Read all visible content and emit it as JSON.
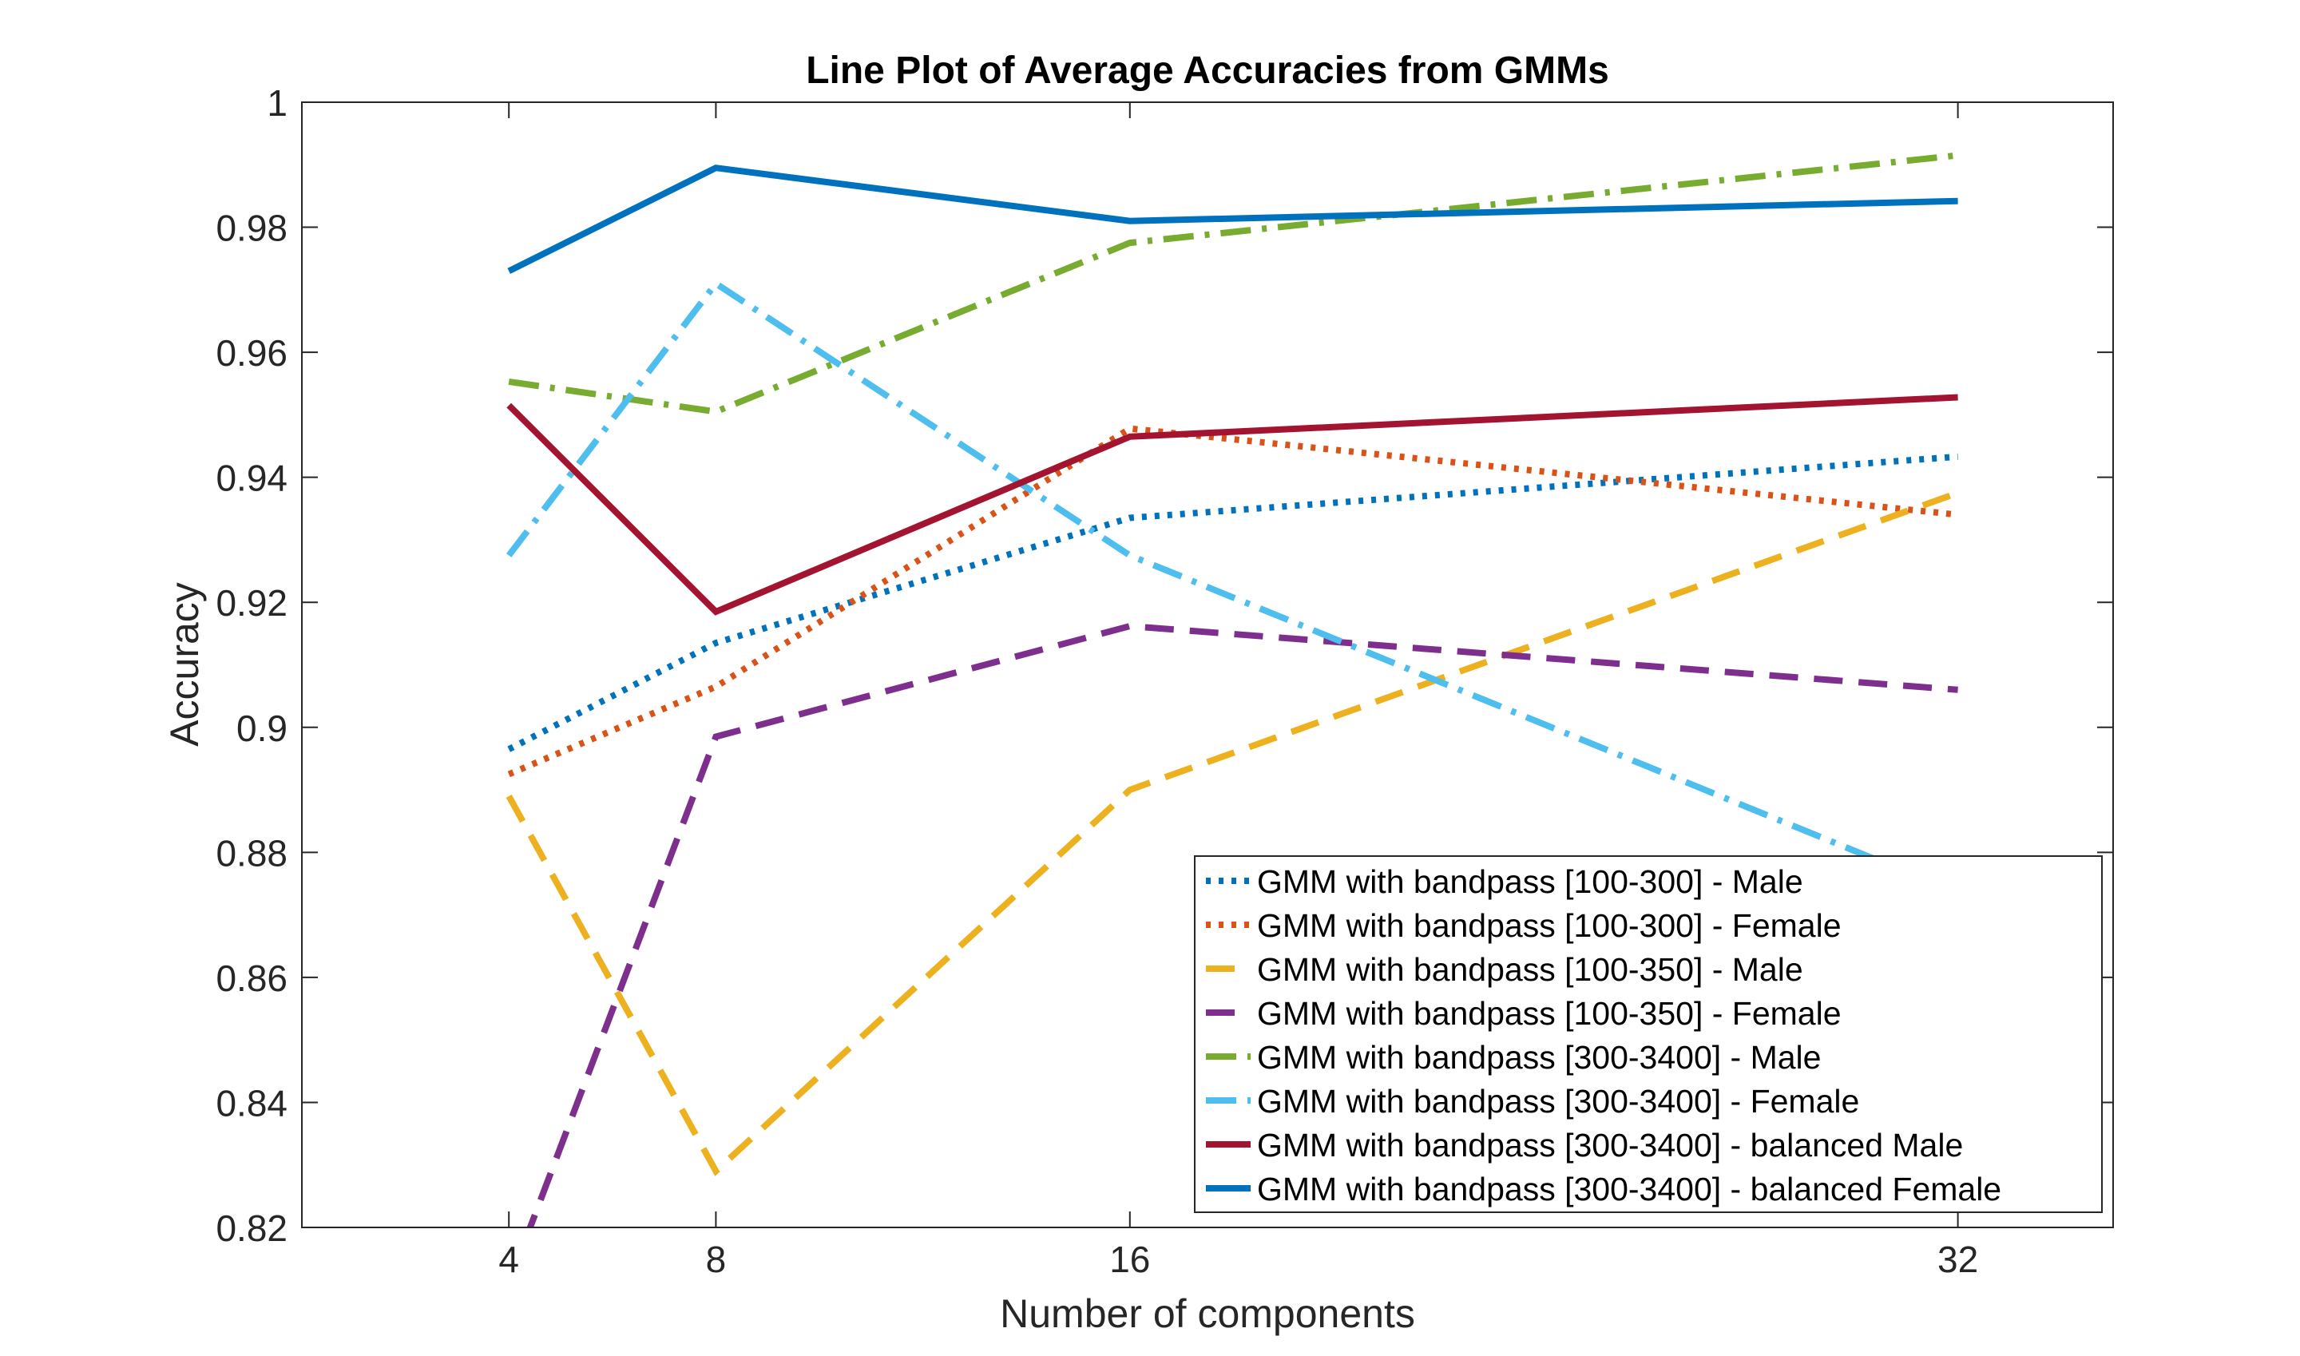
{
  "chart_data": {
    "type": "line",
    "title": "Line Plot of Average Accuracies from GMMs",
    "xlabel": "Number of components",
    "ylabel": "Accuracy",
    "x": [
      4,
      8,
      16,
      32
    ],
    "xticks": [
      4,
      8,
      16,
      32
    ],
    "xtick_labels": [
      "4",
      "8",
      "16",
      "32"
    ],
    "xlim": [
      0,
      35
    ],
    "ylim": [
      0.82,
      1.0
    ],
    "yticks": [
      0.82,
      0.84,
      0.86,
      0.88,
      0.9,
      0.92,
      0.94,
      0.96,
      0.98,
      1.0
    ],
    "ytick_labels": [
      "0.82",
      "0.84",
      "0.86",
      "0.88",
      "0.9",
      "0.92",
      "0.94",
      "0.96",
      "0.98",
      "1"
    ],
    "grid": false,
    "legend_position": "bottom-right",
    "series": [
      {
        "name": "GMM with bandpass [100-300] - Male",
        "values": [
          0.8965,
          0.9135,
          0.9335,
          0.9433
        ],
        "color": "#0072BD",
        "style": "dotted"
      },
      {
        "name": "GMM with bandpass [100-300] - Female",
        "values": [
          0.8925,
          0.9065,
          0.9478,
          0.934
        ],
        "color": "#D95319",
        "style": "dotted"
      },
      {
        "name": "GMM with bandpass [100-350] - Male",
        "values": [
          0.889,
          0.829,
          0.89,
          0.9375
        ],
        "color": "#EDB120",
        "style": "dashed"
      },
      {
        "name": "GMM with bandpass [100-350] - Female",
        "values": [
          0.811,
          0.8985,
          0.9162,
          0.906
        ],
        "color": "#7E2F8E",
        "style": "dashed"
      },
      {
        "name": "GMM with bandpass [300-3400] - Male",
        "values": [
          0.9553,
          0.9505,
          0.9775,
          0.9915
        ],
        "color": "#77AC30",
        "style": "dashdot"
      },
      {
        "name": "GMM with bandpass [300-3400] - Female",
        "values": [
          0.9275,
          0.971,
          0.9275,
          0.8735
        ],
        "color": "#4DBEEE",
        "style": "dashdot"
      },
      {
        "name": "GMM with bandpass [300-3400] - balanced Male",
        "values": [
          0.9515,
          0.9185,
          0.9465,
          0.9528
        ],
        "color": "#A2142F",
        "style": "solid"
      },
      {
        "name": "GMM with bandpass [300-3400] - balanced Female",
        "values": [
          0.973,
          0.9895,
          0.981,
          0.9842
        ],
        "color": "#0072BD",
        "style": "solid"
      }
    ]
  }
}
